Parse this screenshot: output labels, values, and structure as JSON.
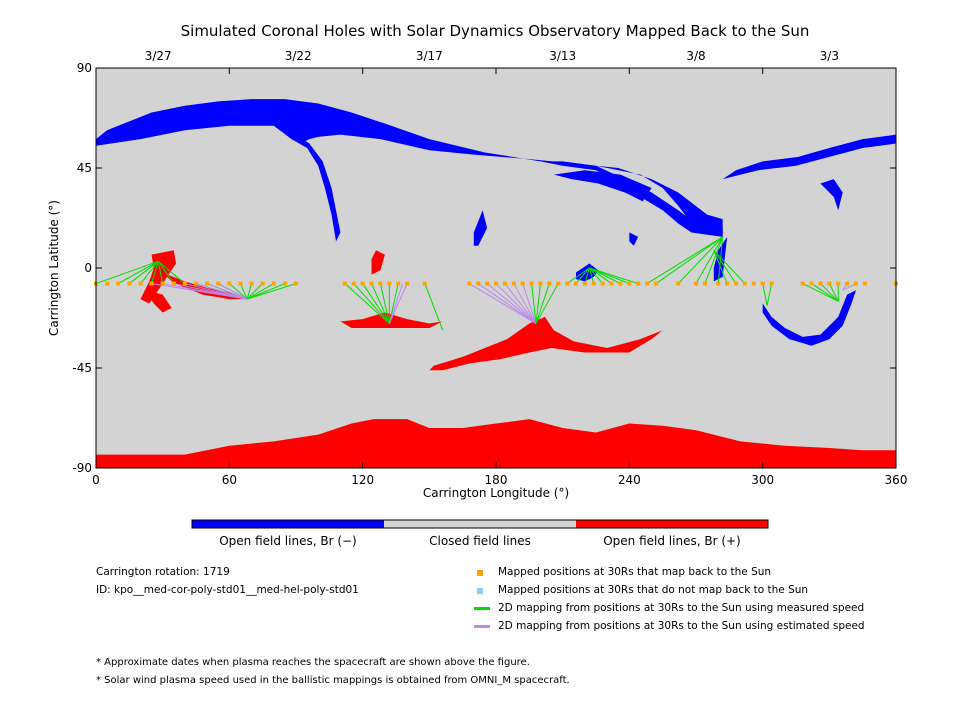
{
  "chart_data": {
    "type": "map",
    "title": "Simulated Coronal Holes with Solar Dynamics Observatory Mapped Back to the Sun",
    "xlabel": "Carrington Longitude (°)",
    "ylabel": "Carrington Latitude (°)",
    "xlim": [
      0,
      360
    ],
    "ylim": [
      -90,
      90
    ],
    "x_ticks": [
      "0",
      "60",
      "120",
      "180",
      "240",
      "300",
      "360"
    ],
    "y_ticks": [
      "90",
      "45",
      "0",
      "-45",
      "-90"
    ],
    "top_date_ticks": [
      {
        "label": "3/27",
        "lon": 28
      },
      {
        "label": "3/22",
        "lon": 91
      },
      {
        "label": "3/17",
        "lon": 150
      },
      {
        "label": "3/13",
        "lon": 210
      },
      {
        "label": "3/8",
        "lon": 270
      },
      {
        "label": "3/3",
        "lon": 330
      }
    ],
    "colorbar": [
      {
        "label": "Open field lines, Br (−)",
        "color": "#0000ff"
      },
      {
        "label": "Closed field lines",
        "color": "#d3d3d3"
      },
      {
        "label": "Open field lines, Br (+)",
        "color": "#ff0000"
      }
    ],
    "colors": {
      "negative": "#0000ff",
      "closed": "#d3d3d3",
      "positive": "#ff0000",
      "mapped": "#ffa500",
      "unmapped": "#87cefa",
      "measured": "#00dd00",
      "estimated": "#bb88ee"
    },
    "spacecraft_latitude": -7,
    "mapped_points_lon": [
      0,
      5,
      10,
      15,
      20,
      25,
      30,
      35,
      40,
      45,
      50,
      55,
      60,
      65,
      70,
      75,
      80,
      85,
      90,
      112,
      116,
      120,
      124,
      128,
      132,
      136,
      140,
      148,
      168,
      172,
      176,
      180,
      184,
      188,
      192,
      196,
      200,
      204,
      208,
      212,
      216,
      220,
      224,
      228,
      232,
      236,
      240,
      244,
      248,
      252,
      262,
      270,
      274,
      280,
      284,
      288,
      292,
      296,
      300,
      304,
      318,
      322,
      326,
      330,
      334,
      338,
      342,
      346,
      360
    ],
    "footpoint_fans": [
      {
        "from": [
          0,
          10,
          15,
          20,
          25,
          30
        ],
        "to": [
          28,
          3
        ],
        "kind": "measured"
      },
      {
        "from": [
          30,
          35,
          40
        ],
        "to": [
          28,
          3
        ],
        "kind": "measured"
      },
      {
        "from": [
          45,
          50,
          55,
          60,
          65,
          70,
          75,
          80,
          85,
          90
        ],
        "to": [
          68,
          -14
        ],
        "kind": "measured"
      },
      {
        "from": [
          25,
          30,
          35,
          40,
          45,
          50,
          55
        ],
        "to": [
          68,
          -14
        ],
        "kind": "estimated"
      },
      {
        "from": [
          112,
          116,
          120,
          124,
          128,
          132,
          136
        ],
        "to": [
          132,
          -25
        ],
        "kind": "measured"
      },
      {
        "from": [
          138,
          140
        ],
        "to": [
          132,
          -25
        ],
        "kind": "estimated"
      },
      {
        "from": [
          148
        ],
        "to": [
          156,
          -28
        ],
        "kind": "measured"
      },
      {
        "from": [
          168,
          172,
          176,
          180,
          184,
          188,
          192
        ],
        "to": [
          198,
          -25
        ],
        "kind": "estimated"
      },
      {
        "from": [
          196,
          200,
          204,
          208
        ],
        "to": [
          198,
          -25
        ],
        "kind": "measured"
      },
      {
        "from": [
          212,
          216,
          220,
          224,
          228,
          232,
          236,
          240,
          244
        ],
        "to": [
          222,
          0
        ],
        "kind": "measured"
      },
      {
        "from": [
          248,
          252,
          262,
          270,
          274,
          280
        ],
        "to": [
          282,
          14
        ],
        "kind": "measured"
      },
      {
        "from": [
          284,
          288,
          292
        ],
        "to": [
          278,
          8
        ],
        "kind": "measured"
      },
      {
        "from": [
          300,
          304
        ],
        "to": [
          302,
          -17
        ],
        "kind": "measured"
      },
      {
        "from": [
          318,
          322,
          326,
          330,
          334
        ],
        "to": [
          334,
          -15
        ],
        "kind": "measured"
      },
      {
        "from": [
          338,
          342
        ],
        "to": [
          336,
          -10
        ],
        "kind": "estimated"
      }
    ],
    "regions": {
      "negative": [
        [
          [
            0,
            58
          ],
          [
            5,
            62
          ],
          [
            15,
            66
          ],
          [
            25,
            70
          ],
          [
            40,
            73
          ],
          [
            55,
            75
          ],
          [
            70,
            76
          ],
          [
            85,
            76
          ],
          [
            100,
            74
          ],
          [
            115,
            70
          ],
          [
            130,
            65
          ],
          [
            150,
            58
          ],
          [
            175,
            52
          ],
          [
            200,
            48
          ],
          [
            225,
            46
          ],
          [
            245,
            42
          ],
          [
            255,
            36
          ],
          [
            262,
            28
          ],
          [
            268,
            20
          ],
          [
            275,
            16
          ],
          [
            282,
            14
          ],
          [
            282,
            22
          ],
          [
            275,
            24
          ],
          [
            262,
            34
          ],
          [
            250,
            40
          ],
          [
            235,
            45
          ],
          [
            215,
            47
          ],
          [
            195,
            49
          ],
          [
            170,
            51
          ],
          [
            150,
            53
          ],
          [
            128,
            58
          ],
          [
            110,
            60
          ],
          [
            100,
            59
          ],
          [
            96,
            58
          ],
          [
            92,
            56
          ],
          [
            88,
            58
          ],
          [
            80,
            64
          ],
          [
            60,
            64
          ],
          [
            40,
            62
          ],
          [
            20,
            58
          ],
          [
            0,
            55
          ]
        ],
        [
          [
            200,
            48
          ],
          [
            210,
            46
          ],
          [
            225,
            44
          ],
          [
            235,
            38
          ],
          [
            245,
            32
          ],
          [
            255,
            26
          ],
          [
            262,
            20
          ],
          [
            268,
            16
          ],
          [
            282,
            14
          ],
          [
            282,
            18
          ],
          [
            270,
            20
          ],
          [
            262,
            26
          ],
          [
            250,
            34
          ],
          [
            238,
            40
          ],
          [
            225,
            46
          ],
          [
            210,
            48
          ]
        ],
        [
          [
            206,
            42
          ],
          [
            214,
            40
          ],
          [
            226,
            38
          ],
          [
            238,
            34
          ],
          [
            246,
            30
          ],
          [
            250,
            36
          ],
          [
            236,
            42
          ],
          [
            220,
            44
          ]
        ],
        [
          [
            88,
            58
          ],
          [
            95,
            54
          ],
          [
            100,
            46
          ],
          [
            103,
            36
          ],
          [
            106,
            24
          ],
          [
            108,
            12
          ],
          [
            110,
            16
          ],
          [
            108,
            26
          ],
          [
            106,
            36
          ],
          [
            102,
            48
          ],
          [
            96,
            56
          ],
          [
            90,
            60
          ]
        ],
        [
          [
            282,
            40
          ],
          [
            298,
            44
          ],
          [
            315,
            46
          ],
          [
            330,
            50
          ],
          [
            345,
            54
          ],
          [
            360,
            56
          ],
          [
            360,
            60
          ],
          [
            345,
            58
          ],
          [
            330,
            54
          ],
          [
            316,
            50
          ],
          [
            300,
            48
          ],
          [
            288,
            44
          ]
        ],
        [
          [
            326,
            38
          ],
          [
            332,
            32
          ],
          [
            334,
            26
          ],
          [
            336,
            34
          ],
          [
            332,
            40
          ]
        ],
        [
          [
            300,
            -20
          ],
          [
            304,
            -26
          ],
          [
            312,
            -32
          ],
          [
            322,
            -35
          ],
          [
            330,
            -32
          ],
          [
            336,
            -26
          ],
          [
            340,
            -16
          ],
          [
            342,
            -10
          ],
          [
            338,
            -12
          ],
          [
            334,
            -22
          ],
          [
            326,
            -30
          ],
          [
            318,
            -31
          ],
          [
            310,
            -27
          ],
          [
            304,
            -22
          ],
          [
            300,
            -16
          ]
        ],
        [
          [
            216,
            -2
          ],
          [
            222,
            2
          ],
          [
            226,
            -1
          ],
          [
            224,
            -4
          ],
          [
            220,
            -6
          ],
          [
            216,
            -5
          ]
        ],
        [
          [
            172,
            10
          ],
          [
            176,
            18
          ],
          [
            174,
            26
          ],
          [
            170,
            16
          ],
          [
            170,
            10
          ]
        ],
        [
          [
            240,
            16
          ],
          [
            244,
            14
          ],
          [
            242,
            10
          ],
          [
            240,
            12
          ]
        ],
        [
          [
            278,
            -6
          ],
          [
            282,
            -4
          ],
          [
            284,
            14
          ],
          [
            280,
            8
          ],
          [
            278,
            0
          ]
        ]
      ],
      "positive": [
        [
          [
            0,
            -84
          ],
          [
            20,
            -84
          ],
          [
            40,
            -84
          ],
          [
            60,
            -80
          ],
          [
            80,
            -78
          ],
          [
            100,
            -75
          ],
          [
            115,
            -70
          ],
          [
            125,
            -68
          ],
          [
            140,
            -68
          ],
          [
            150,
            -72
          ],
          [
            165,
            -72
          ],
          [
            180,
            -70
          ],
          [
            195,
            -68
          ],
          [
            210,
            -72
          ],
          [
            225,
            -74
          ],
          [
            240,
            -70
          ],
          [
            255,
            -71
          ],
          [
            270,
            -73
          ],
          [
            290,
            -78
          ],
          [
            310,
            -80
          ],
          [
            330,
            -81
          ],
          [
            345,
            -82
          ],
          [
            360,
            -82
          ],
          [
            360,
            -90
          ],
          [
            0,
            -90
          ]
        ],
        [
          [
            25,
            6
          ],
          [
            35,
            8
          ],
          [
            36,
            2
          ],
          [
            32,
            -4
          ],
          [
            28,
            -10
          ],
          [
            24,
            -16
          ],
          [
            20,
            -14
          ],
          [
            24,
            -6
          ],
          [
            26,
            0
          ]
        ],
        [
          [
            30,
            -2
          ],
          [
            40,
            -6
          ],
          [
            50,
            -9
          ],
          [
            60,
            -11
          ],
          [
            68,
            -14
          ],
          [
            60,
            -14
          ],
          [
            48,
            -12
          ],
          [
            38,
            -8
          ],
          [
            34,
            -6
          ]
        ],
        [
          [
            22,
            -10
          ],
          [
            26,
            -16
          ],
          [
            30,
            -20
          ],
          [
            34,
            -18
          ],
          [
            30,
            -12
          ]
        ],
        [
          [
            110,
            -24
          ],
          [
            120,
            -23
          ],
          [
            130,
            -20
          ],
          [
            140,
            -23
          ],
          [
            150,
            -25
          ],
          [
            156,
            -24
          ],
          [
            150,
            -27
          ],
          [
            140,
            -27
          ],
          [
            125,
            -27
          ],
          [
            115,
            -27
          ]
        ],
        [
          [
            152,
            -44
          ],
          [
            165,
            -40
          ],
          [
            175,
            -36
          ],
          [
            185,
            -32
          ],
          [
            195,
            -25
          ],
          [
            202,
            -22
          ],
          [
            206,
            -28
          ],
          [
            215,
            -33
          ],
          [
            230,
            -36
          ],
          [
            245,
            -32
          ],
          [
            255,
            -28
          ],
          [
            250,
            -32
          ],
          [
            240,
            -38
          ],
          [
            220,
            -38
          ],
          [
            205,
            -36
          ],
          [
            195,
            -38
          ],
          [
            182,
            -41
          ],
          [
            168,
            -43
          ],
          [
            156,
            -46
          ],
          [
            150,
            -46
          ]
        ],
        [
          [
            124,
            -3
          ],
          [
            128,
            -1
          ],
          [
            130,
            6
          ],
          [
            126,
            8
          ],
          [
            124,
            4
          ]
        ]
      ]
    }
  },
  "info": {
    "rotation_label": "Carrington rotation: 1719",
    "id_label": "ID: kpo__med-cor-poly-std01__med-hel-poly-std01"
  },
  "legend": {
    "mapped": "Mapped positions at 30Rs that map back to the Sun",
    "unmapped": "Mapped positions at 30Rs that do not map back to the Sun",
    "measured": "2D mapping from positions at 30Rs to the Sun using measured speed",
    "estimated": "2D mapping from positions at 30Rs to the Sun using estimated speed"
  },
  "footnotes": [
    "* Approximate dates when plasma reaches the spacecraft are shown above the figure.",
    "* Solar wind plasma speed used in the ballistic mappings is obtained from OMNI_M spacecraft."
  ]
}
